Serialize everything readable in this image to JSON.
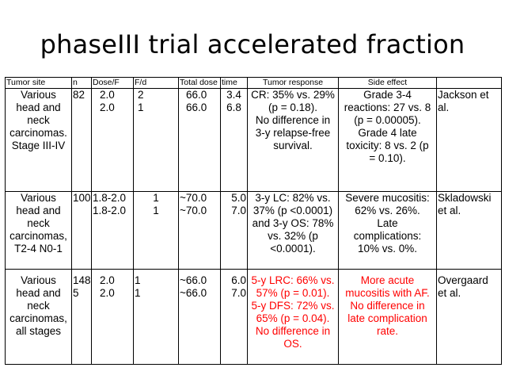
{
  "title": "phaseIII trial accelerated  fraction",
  "table": {
    "headers": [
      "Tumor site",
      "n",
      "Dose/F",
      "F/d",
      "Total dose",
      "time",
      "Tumor response",
      "Side effect",
      ""
    ],
    "rows": [
      {
        "site": [
          "Various",
          "head and",
          "neck",
          "carcinomas.",
          "Stage III-IV"
        ],
        "n": [
          "82"
        ],
        "dose_f": [
          "2.0",
          "2.0"
        ],
        "f_d": [
          "2",
          "1"
        ],
        "total_dose": [
          "66.0",
          "66.0"
        ],
        "time": [
          "3.4",
          "6.8"
        ],
        "response": [
          "CR: 35% vs. 29%",
          "(p = 0.18).",
          "No difference in",
          "3-y relapse-free",
          "survival."
        ],
        "side_effect": [
          "Grade 3-4",
          "reactions: 27 vs. 8",
          "(p = 0.00005).",
          "Grade 4 late",
          "toxicity: 8 vs. 2 (p",
          "= 0.10)."
        ],
        "reference": [
          "Jackson et",
          "al."
        ]
      },
      {
        "site": [
          "Various",
          "head and",
          "neck",
          "carcinomas,",
          "T2-4 N0-1"
        ],
        "n": [
          "100"
        ],
        "dose_f": [
          "1.8-2.0",
          "1.8-2.0"
        ],
        "f_d": [
          "1",
          "1"
        ],
        "total_dose": [
          "~70.0",
          "~70.0"
        ],
        "time": [
          "5.0",
          "7.0"
        ],
        "response": [
          "3-y LC: 82% vs.",
          "37% (p <0.0001)",
          "and 3-y OS: 78%",
          "vs. 32% (p",
          "<0.0001)."
        ],
        "side_effect": [
          "Severe mucositis:",
          "62% vs. 26%.",
          "Late",
          "complications:",
          "10% vs. 0%."
        ],
        "reference": [
          "Skladowski",
          "et al."
        ]
      },
      {
        "site": [
          "Various",
          "head and",
          "neck",
          "carcinomas,",
          "all stages"
        ],
        "n": [
          "148",
          "5"
        ],
        "dose_f": [
          "2.0",
          "2.0"
        ],
        "f_d": [
          "1",
          "1"
        ],
        "total_dose": [
          "~66.0",
          "~66.0"
        ],
        "time": [
          "6.0",
          "7.0"
        ],
        "response": [
          "5-y LRC: 66% vs.",
          "57% (p = 0.01).",
          "5-y DFS: 72% vs.",
          "65% (p = 0.04).",
          "No difference in",
          "OS."
        ],
        "side_effect": [
          "More acute",
          "mucositis with AF.",
          "No difference in",
          "late complication",
          "rate."
        ],
        "reference": [
          "Overgaard",
          "et al."
        ]
      }
    ]
  },
  "colors": {
    "text": "#000000",
    "highlight": "#ff0000",
    "border": "#000000",
    "background": "#ffffff"
  }
}
